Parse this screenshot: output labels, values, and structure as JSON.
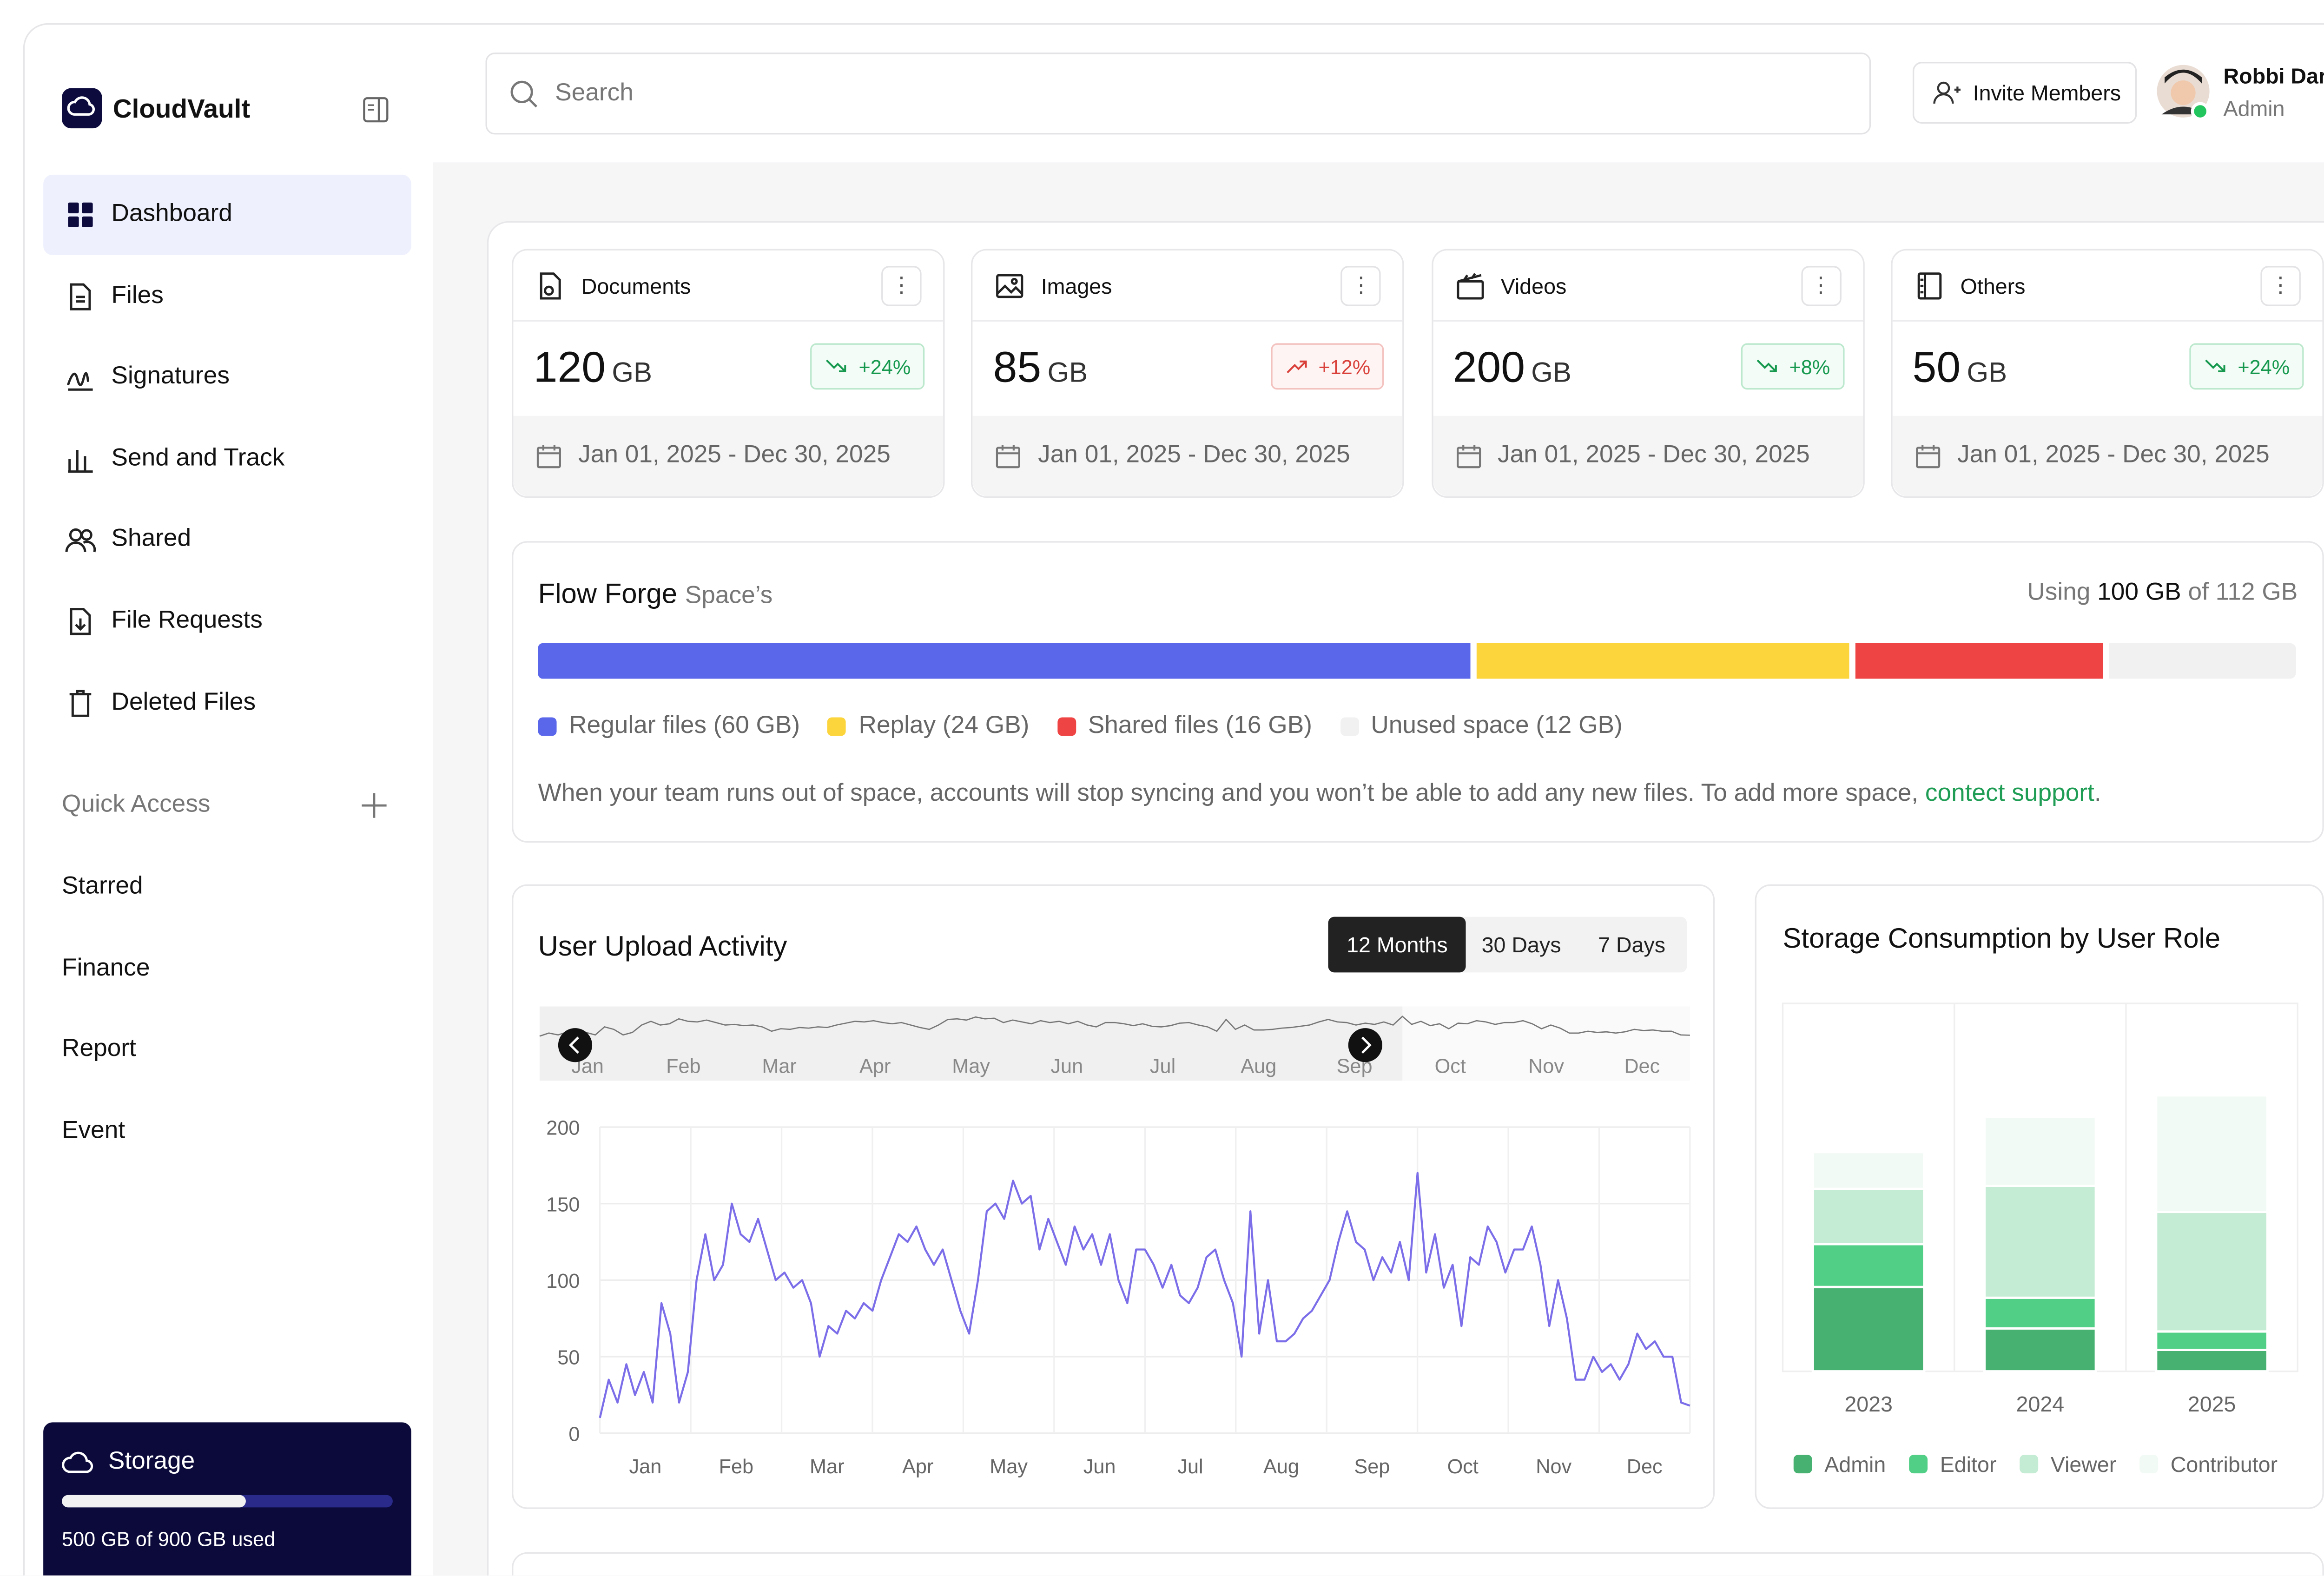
{
  "sidebar": {
    "brand": "CloudVault",
    "nav": [
      "Dashboard",
      "Files",
      "Signatures",
      "Send and Track",
      "Shared",
      "File Requests",
      "Deleted Files"
    ],
    "active": 0,
    "quick_access": {
      "title": "Quick Access",
      "items": [
        "Starred",
        "Finance",
        "Report",
        "Event"
      ]
    },
    "storage": {
      "title": "Storage",
      "text": "500 GB of 900 GB used",
      "used": 500,
      "total": 900
    }
  },
  "header": {
    "search_placeholder": "Search",
    "invite": "Invite Members",
    "user": {
      "name": "Robbi Darwis",
      "role": "Admin"
    }
  },
  "cards": [
    {
      "title": "Documents",
      "value": "120",
      "unit": "GB",
      "change": "+24%",
      "trend": "down",
      "date_range": "Jan 01, 2025 - Dec 30, 2025"
    },
    {
      "title": "Images",
      "value": "85",
      "unit": "GB",
      "change": "+12%",
      "trend": "up",
      "date_range": "Jan 01, 2025 - Dec 30, 2025"
    },
    {
      "title": "Videos",
      "value": "200",
      "unit": "GB",
      "change": "+8%",
      "trend": "down",
      "date_range": "Jan 01, 2025 - Dec 30, 2025"
    },
    {
      "title": "Others",
      "value": "50",
      "unit": "GB",
      "change": "+24%",
      "trend": "down",
      "date_range": "Jan 01, 2025 - Dec 30, 2025"
    }
  ],
  "space": {
    "title": "Flow Forge",
    "subtitle": "Space’s",
    "usage": {
      "prefix": "Using",
      "used": "100 GB",
      "suffix": "of 112 GB"
    },
    "segments": [
      {
        "name": "Regular files (60 GB)",
        "value": 60,
        "color": "#5b67ea"
      },
      {
        "name": "Replay (24 GB)",
        "value": 24,
        "color": "#fcd43b"
      },
      {
        "name": "Shared files (16 GB)",
        "value": 16,
        "color": "#ef4444"
      },
      {
        "name": "Unused space (12 GB)",
        "value": 12,
        "color": "#f1f1f1"
      }
    ],
    "notice": {
      "text": "When your team runs out of space, accounts will stop syncing and you won’t be able to add any new files. To add more space,",
      "link": "contect support",
      "end": "."
    }
  },
  "upload_activity": {
    "title": "User Upload Activity",
    "tabs": [
      "12 Months",
      "30 Days",
      "7 Days"
    ],
    "active_tab": 0,
    "chart_data": {
      "type": "line",
      "month_labels": [
        "Jan",
        "Feb",
        "Mar",
        "Apr",
        "May",
        "Jun",
        "Jul",
        "Aug",
        "Sep",
        "Oct",
        "Nov",
        "Dec"
      ],
      "values": [
        10,
        35,
        20,
        45,
        25,
        40,
        20,
        85,
        65,
        20,
        40,
        100,
        130,
        100,
        110,
        150,
        130,
        125,
        140,
        120,
        100,
        105,
        95,
        100,
        85,
        50,
        70,
        65,
        80,
        75,
        85,
        80,
        100,
        115,
        130,
        125,
        135,
        120,
        110,
        120,
        100,
        80,
        65,
        100,
        145,
        150,
        140,
        165,
        150,
        155,
        120,
        140,
        125,
        110,
        135,
        120,
        130,
        110,
        130,
        100,
        85,
        120,
        120,
        110,
        95,
        110,
        90,
        85,
        95,
        115,
        120,
        100,
        85,
        50,
        145,
        65,
        100,
        60,
        60,
        65,
        75,
        80,
        90,
        100,
        125,
        145,
        125,
        120,
        100,
        115,
        105,
        125,
        100,
        170,
        105,
        130,
        95,
        110,
        70,
        115,
        110,
        135,
        125,
        105,
        120,
        120,
        135,
        110,
        70,
        100,
        75,
        35,
        35,
        50,
        40,
        45,
        35,
        45,
        65,
        55,
        60,
        50,
        50,
        20,
        18
      ],
      "color": "#7b6ee8",
      "ylim": [
        0,
        200
      ],
      "yticks": [
        0,
        50,
        100,
        150,
        200
      ],
      "grid": true
    }
  },
  "storage_by_role": {
    "chart_data": {
      "type": "bar",
      "stacked": true,
      "title": "Storage Consumption by User Role",
      "categories": [
        "2023",
        "2024",
        "2025"
      ],
      "series": [
        {
          "name": "Admin",
          "color": "#46b170",
          "values": [
            55,
            28,
            14
          ]
        },
        {
          "name": "Editor",
          "color": "#52cf86",
          "values": [
            28,
            20,
            12
          ]
        },
        {
          "name": "Viewer",
          "color": "#c4ebd3",
          "values": [
            36,
            73,
            78
          ]
        },
        {
          "name": "Contributor",
          "color": "#f1faf4",
          "values": [
            24,
            45,
            76
          ]
        }
      ],
      "ylim": [
        0,
        240
      ]
    }
  }
}
